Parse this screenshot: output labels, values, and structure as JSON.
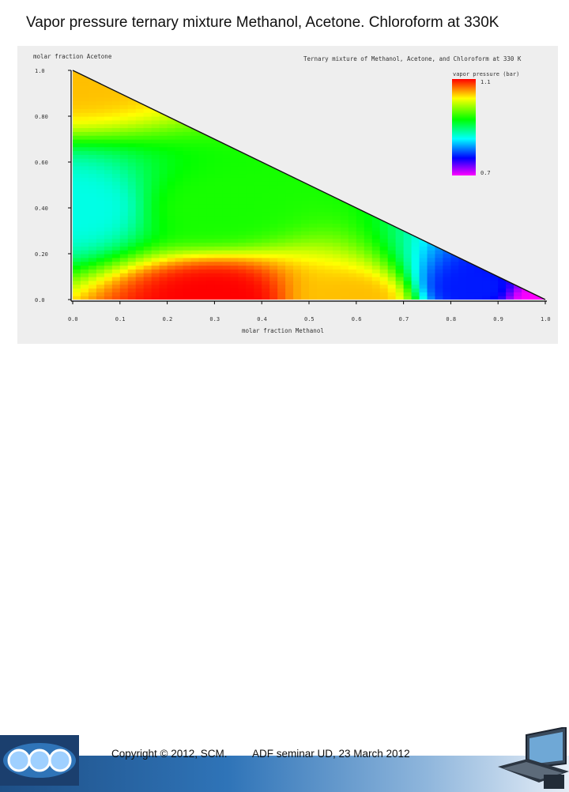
{
  "slide": {
    "title": "Vapor pressure ternary mixture Methanol, Acetone. Chloroform at 330K"
  },
  "footer": {
    "copyright": "Copyright © 2012, SCM.",
    "event": "ADF seminar UD,  23 March 2012"
  },
  "chart_data": {
    "type": "heatmap",
    "title": "Ternary mixture of Methanol, Acetone, and Chloroform at 330 K",
    "xlabel": "molar fraction Methanol",
    "ylabel": "molar fraction Acetone",
    "xlim": [
      0.0,
      1.0
    ],
    "ylim": [
      0.0,
      1.0
    ],
    "x_ticks": [
      "0.0",
      "0.1",
      "0.2",
      "0.3",
      "0.4",
      "0.5",
      "0.6",
      "0.7",
      "0.8",
      "0.9",
      "1.0"
    ],
    "y_ticks": [
      "0.0",
      "0.20",
      "0.40",
      "0.60",
      "0.80",
      "1.0"
    ],
    "colorbar": {
      "label": "vapor pressure (bar)",
      "max_label": "1.1",
      "min_label": "0.7",
      "range": [
        0.7,
        1.1
      ],
      "colors": [
        "#ff00ff",
        "#0000ff",
        "#00ffff",
        "#00ff00",
        "#ffff00",
        "#ff0000"
      ]
    },
    "approx_values": [
      {
        "x_methanol": 0.0,
        "y_acetone": 1.0,
        "p": 1.04
      },
      {
        "x_methanol": 0.0,
        "y_acetone": 0.4,
        "p": 0.86
      },
      {
        "x_methanol": 0.3,
        "y_acetone": 0.0,
        "p": 1.1
      },
      {
        "x_methanol": 0.6,
        "y_acetone": 0.0,
        "p": 1.04
      },
      {
        "x_methanol": 0.3,
        "y_acetone": 0.4,
        "p": 0.94
      },
      {
        "x_methanol": 0.85,
        "y_acetone": 0.05,
        "p": 0.78
      },
      {
        "x_methanol": 1.0,
        "y_acetone": 0.0,
        "p": 0.7
      }
    ]
  }
}
